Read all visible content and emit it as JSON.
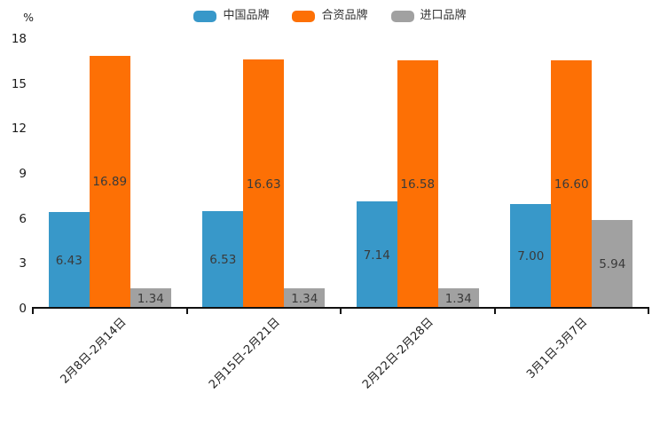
{
  "chart_data": {
    "type": "bar",
    "unit_label": "%",
    "categories": [
      "2月8日-2月14日",
      "2月15日-2月21日",
      "2月22日-2月28日",
      "3月1日-3月7日"
    ],
    "series": [
      {
        "id": "china-brand",
        "name": "中国品牌",
        "color": "#3898c9",
        "values": [
          6.43,
          6.53,
          7.14,
          7.0
        ]
      },
      {
        "id": "joint-venture-brand",
        "name": "合资品牌",
        "color": "#fd7005",
        "values": [
          16.89,
          16.63,
          16.58,
          16.6
        ]
      },
      {
        "id": "import-brand",
        "name": "进口品牌",
        "color": "#a1a1a1",
        "values": [
          1.34,
          1.34,
          1.34,
          5.94
        ]
      }
    ],
    "y_ticks": [
      0,
      3,
      6,
      9,
      12,
      15,
      18
    ],
    "ylim": [
      0,
      18
    ],
    "grid": false,
    "legend_position": "top",
    "value_label_decimals": 2,
    "value_label_position": "inside-center"
  }
}
